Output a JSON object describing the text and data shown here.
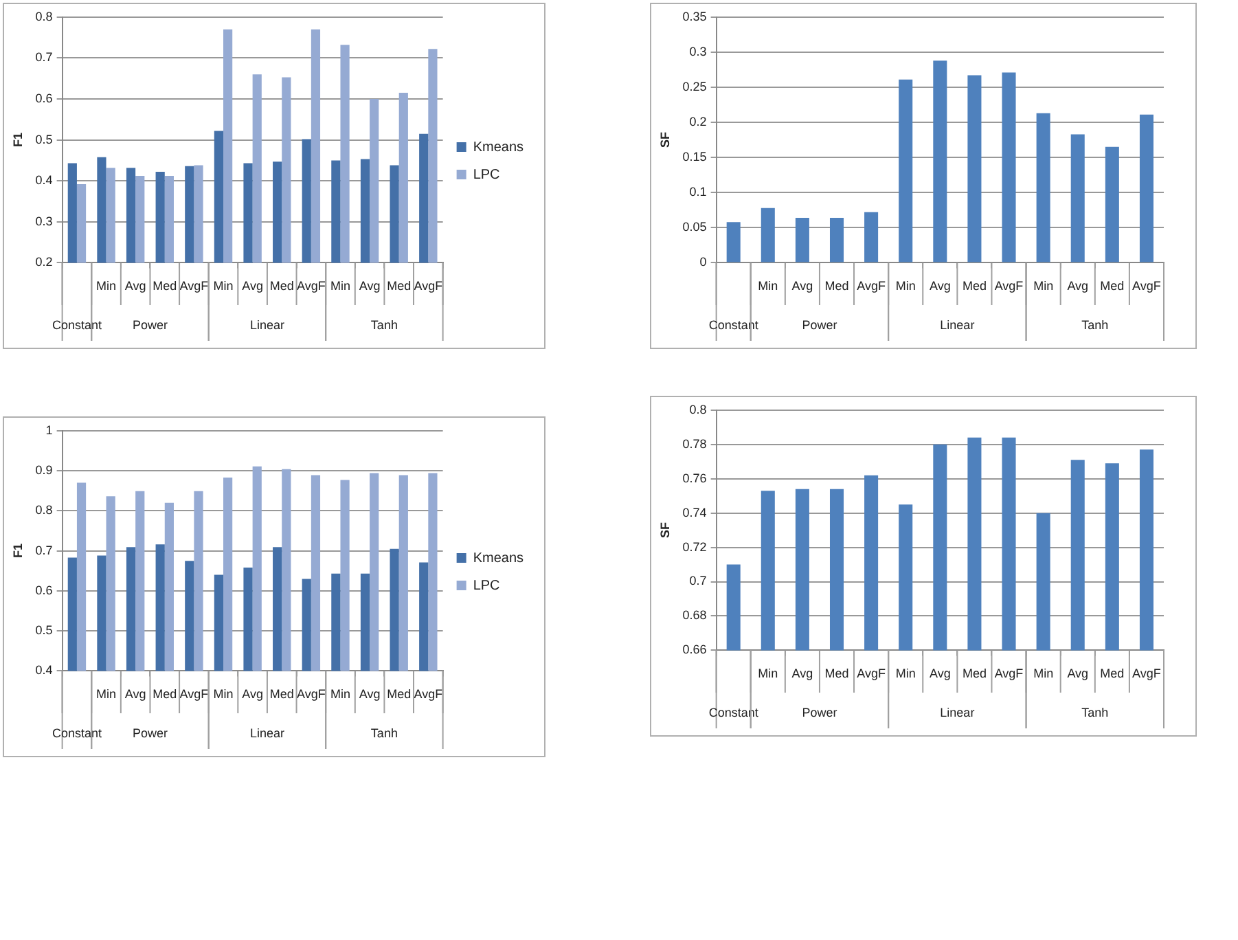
{
  "chart_data": [
    {
      "type": "bar",
      "ylabel": "F1",
      "categories": [
        null,
        "Min",
        "Avg",
        "Med",
        "AvgF",
        "Min",
        "Avg",
        "Med",
        "AvgF",
        "Min",
        "Avg",
        "Med",
        "AvgF"
      ],
      "annotations": [
        "Constant",
        "Power",
        "Linear",
        "Tanh"
      ],
      "series": [
        {
          "name": "Kmeans",
          "color": "#4470a8",
          "values": [
            0.443,
            0.458,
            0.432,
            0.422,
            0.436,
            0.522,
            0.443,
            0.447,
            0.502,
            0.45,
            0.453,
            0.438,
            0.515
          ]
        },
        {
          "name": "LPC",
          "color": "#95aad3",
          "values": [
            0.392,
            0.432,
            0.412,
            0.412,
            0.438,
            0.77,
            0.66,
            0.653,
            0.77,
            0.732,
            0.6,
            0.615,
            0.722
          ]
        }
      ],
      "ylim": [
        0.2,
        0.8
      ],
      "yticks": [
        0.2,
        0.3,
        0.4,
        0.5,
        0.6,
        0.7,
        0.8
      ],
      "grid": "y",
      "legend": "right"
    },
    {
      "type": "bar",
      "ylabel": "SF",
      "categories": [
        null,
        "Min",
        "Avg",
        "Med",
        "AvgF",
        "Min",
        "Avg",
        "Med",
        "AvgF",
        "Min",
        "Avg",
        "Med",
        "AvgF"
      ],
      "annotations": [
        "Constant",
        "Power",
        "Linear",
        "Tanh"
      ],
      "series": [
        {
          "color": "#4f81bd",
          "values": [
            0.058,
            0.078,
            0.064,
            0.064,
            0.072,
            0.261,
            0.288,
            0.267,
            0.271,
            0.213,
            0.183,
            0.165,
            0.211
          ]
        }
      ],
      "ylim": [
        0,
        0.35
      ],
      "yticks": [
        0,
        0.05,
        0.1,
        0.15,
        0.2,
        0.25,
        0.3,
        0.35
      ],
      "grid": "y"
    },
    {
      "type": "bar",
      "ylabel": "F1",
      "categories": [
        null,
        "Min",
        "Avg",
        "Med",
        "AvgF",
        "Min",
        "Avg",
        "Med",
        "AvgF",
        "Min",
        "Avg",
        "Med",
        "AvgF"
      ],
      "annotations": [
        "Constant",
        "Power",
        "Linear",
        "Tanh"
      ],
      "series": [
        {
          "name": "Kmeans",
          "color": "#4470a8",
          "values": [
            0.683,
            0.688,
            0.709,
            0.716,
            0.675,
            0.64,
            0.658,
            0.709,
            0.63,
            0.643,
            0.643,
            0.705,
            0.671
          ]
        },
        {
          "name": "LPC",
          "color": "#95aad3",
          "values": [
            0.87,
            0.836,
            0.849,
            0.82,
            0.849,
            0.883,
            0.911,
            0.904,
            0.889,
            0.877,
            0.894,
            0.889,
            0.894
          ]
        }
      ],
      "ylim": [
        0.4,
        1
      ],
      "yticks": [
        0.4,
        0.5,
        0.6,
        0.7,
        0.8,
        0.9,
        1
      ],
      "grid": "y",
      "legend": "right"
    },
    {
      "type": "bar",
      "ylabel": "SF",
      "categories": [
        null,
        "Min",
        "Avg",
        "Med",
        "AvgF",
        "Min",
        "Avg",
        "Med",
        "AvgF",
        "Min",
        "Avg",
        "Med",
        "AvgF"
      ],
      "annotations": [
        "Constant",
        "Power",
        "Linear",
        "Tanh"
      ],
      "series": [
        {
          "color": "#4f81bd",
          "values": [
            0.71,
            0.753,
            0.754,
            0.754,
            0.762,
            0.745,
            0.78,
            0.784,
            0.784,
            0.74,
            0.771,
            0.769,
            0.777
          ]
        }
      ],
      "ylim": [
        0.66,
        0.8
      ],
      "yticks": [
        0.66,
        0.68,
        0.7,
        0.72,
        0.74,
        0.76,
        0.78,
        0.8
      ],
      "grid": "y"
    }
  ]
}
